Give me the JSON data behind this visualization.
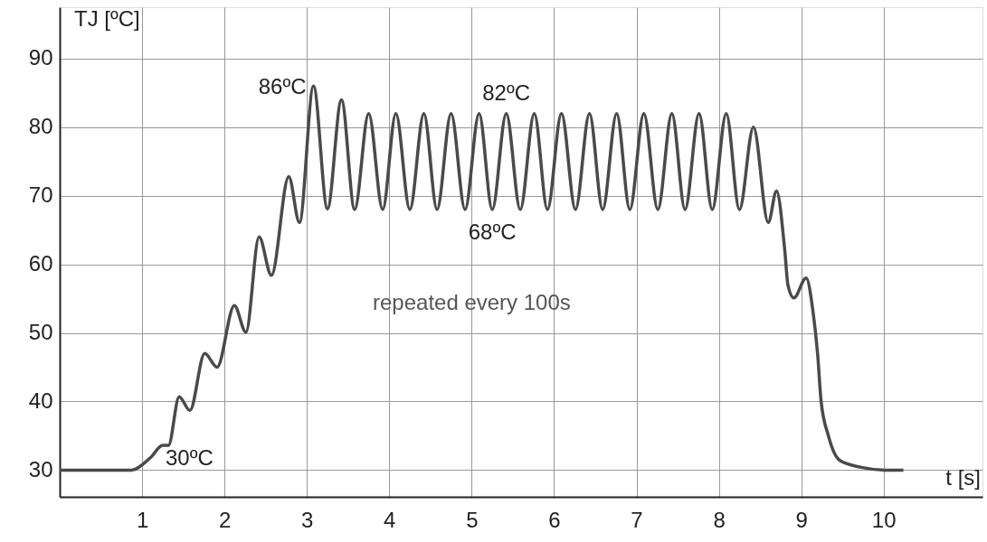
{
  "chart_data": {
    "type": "line",
    "xlabel": "t [s]",
    "ylabel": "TJ [ºC]",
    "x": [
      0,
      0.87,
      1.1,
      1.25,
      1.32,
      1.45,
      1.58,
      1.76,
      1.91,
      2.12,
      2.26,
      2.42,
      2.57,
      2.78,
      2.91,
      3.08,
      3.25,
      3.42,
      3.58,
      3.75,
      3.92,
      4.08,
      4.25,
      4.42,
      4.58,
      4.75,
      4.92,
      5.09,
      5.25,
      5.42,
      5.59,
      5.76,
      5.92,
      6.09,
      6.26,
      6.43,
      6.59,
      6.76,
      6.92,
      7.09,
      7.26,
      7.43,
      7.59,
      7.76,
      7.92,
      8.09,
      8.25,
      8.42,
      8.6,
      8.7,
      8.8,
      8.84,
      8.91,
      9.06,
      9.14,
      9.2,
      9.24,
      9.33,
      9.47,
      9.73,
      10.02,
      10.24
    ],
    "series": [
      {
        "color": "#4a4a4a",
        "values": [
          30,
          30,
          31.8,
          33.6,
          33.6,
          40.7,
          38.7,
          47,
          45,
          54,
          50.1,
          64,
          58.4,
          72.8,
          66.1,
          86,
          68.1,
          84,
          68,
          82,
          68,
          82,
          68,
          82,
          68,
          82,
          68,
          82,
          68,
          82,
          68,
          82,
          68,
          82,
          68,
          82,
          68,
          82,
          68,
          82,
          68,
          82,
          68,
          82,
          68,
          82,
          68,
          80,
          66.1,
          70.7,
          62.1,
          56.9,
          55.1,
          58,
          53.4,
          46.8,
          40.2,
          35,
          31.4,
          30.4,
          30,
          30
        ]
      }
    ],
    "xlim": [
      0,
      11.2
    ],
    "ylim": [
      26.1,
      97.5
    ],
    "xticks": [
      1,
      2,
      3,
      4,
      5,
      6,
      7,
      8,
      9,
      10
    ],
    "yticks": [
      30,
      40,
      50,
      60,
      70,
      80,
      90
    ],
    "grid": true,
    "marker": "none",
    "line_style": "solid",
    "annotations": [
      {
        "text": "86ºC",
        "x": 3.08,
        "y": 86
      },
      {
        "text": "82ºC",
        "x": 5.42,
        "y": 82
      },
      {
        "text": "68ºC",
        "x": 5.25,
        "y": 68
      },
      "30ºC",
      "repeated every 100s"
    ]
  }
}
